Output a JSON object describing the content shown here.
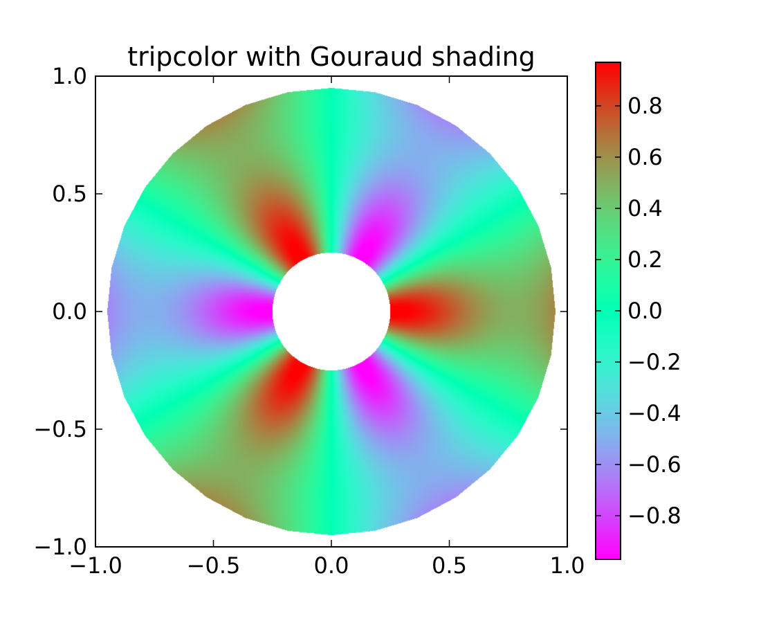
{
  "chart_data": {
    "type": "heatmap",
    "subtype": "tripcolor",
    "title": "tripcolor with Gouraud shading",
    "xlabel": "",
    "ylabel": "",
    "xlim": [
      -1.0,
      1.0
    ],
    "ylim": [
      -1.0,
      1.0
    ],
    "x_ticks": [
      -1.0,
      -0.5,
      0.0,
      0.5,
      1.0
    ],
    "x_tick_labels": [
      "−1.0",
      "−0.5",
      "0.0",
      "0.5",
      "1.0"
    ],
    "y_ticks": [
      -1.0,
      -0.5,
      0.0,
      0.5,
      1.0
    ],
    "y_tick_labels": [
      "−1.0",
      "−0.5",
      "0.0",
      "0.5",
      "1.0"
    ],
    "grid": false,
    "domain": {
      "shape": "annulus",
      "inner_radius": 0.25,
      "outer_radius": 0.95
    },
    "field": {
      "description_of_values": "value = cos(3*theta) * cos(6*radius)",
      "value_range": [
        -0.97,
        0.97
      ]
    },
    "colormap": "rainbow",
    "colorbar": {
      "position": "right",
      "range": [
        -0.97,
        0.97
      ],
      "ticks": [
        0.8,
        0.6,
        0.4,
        0.2,
        0.0,
        -0.2,
        -0.4,
        -0.6,
        -0.8
      ],
      "tick_labels": [
        "0.8",
        "0.6",
        "0.4",
        "0.2",
        "0.0",
        "−0.2",
        "−0.4",
        "−0.6",
        "−0.8"
      ]
    }
  }
}
